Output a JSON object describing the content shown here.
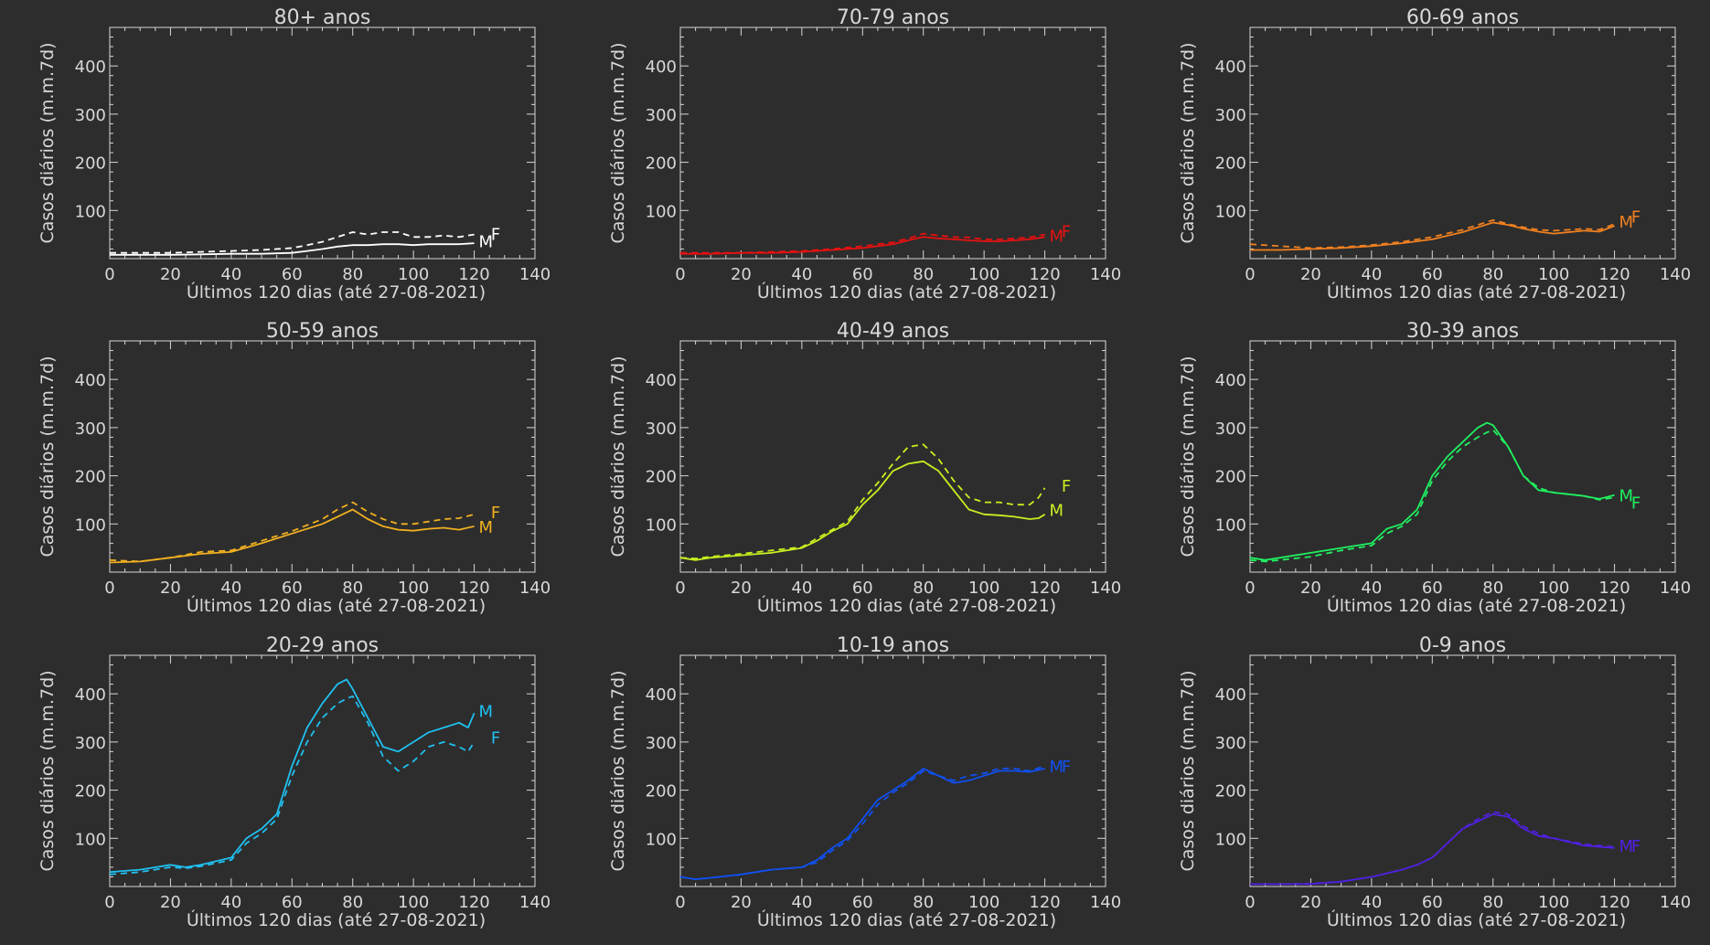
{
  "chart_data": [
    {
      "type": "line",
      "title": "80+ anos",
      "xlabel": "Últimos 120 dias (até 27-08-2021)",
      "ylabel": "Casos diários (m.m.7d)",
      "xlim": [
        0,
        140
      ],
      "ylim": [
        0,
        480
      ],
      "xticks": [
        0,
        20,
        40,
        60,
        80,
        100,
        120,
        140
      ],
      "yticks": [
        100,
        200,
        300,
        400
      ],
      "color": "#ffffff",
      "label_m": "M",
      "label_f": "F",
      "label_m_y": 37,
      "label_f_y": 52,
      "series": [
        {
          "name": "M",
          "style": "solid",
          "x": [
            0,
            10,
            20,
            30,
            40,
            50,
            60,
            65,
            70,
            75,
            80,
            85,
            90,
            95,
            100,
            105,
            110,
            115,
            120
          ],
          "y": [
            8,
            8,
            8,
            9,
            10,
            10,
            12,
            16,
            20,
            25,
            28,
            28,
            30,
            30,
            28,
            30,
            30,
            30,
            32
          ]
        },
        {
          "name": "F",
          "style": "dashed",
          "x": [
            0,
            10,
            20,
            30,
            40,
            50,
            60,
            65,
            70,
            75,
            80,
            85,
            90,
            95,
            100,
            105,
            110,
            115,
            120
          ],
          "y": [
            12,
            12,
            12,
            14,
            16,
            18,
            22,
            28,
            35,
            45,
            55,
            50,
            55,
            55,
            45,
            45,
            48,
            45,
            50
          ]
        }
      ]
    },
    {
      "type": "line",
      "title": "70-79 anos",
      "xlabel": "Últimos 120 dias (até 27-08-2021)",
      "ylabel": "Casos diários (m.m.7d)",
      "xlim": [
        0,
        140
      ],
      "ylim": [
        0,
        480
      ],
      "xticks": [
        0,
        20,
        40,
        60,
        80,
        100,
        120,
        140
      ],
      "yticks": [
        100,
        200,
        300,
        400
      ],
      "color": "#e81010",
      "label_m": "M",
      "label_f": "F",
      "label_m_y": 48,
      "label_f_y": 58,
      "series": [
        {
          "name": "M",
          "style": "solid",
          "x": [
            0,
            10,
            20,
            30,
            40,
            50,
            60,
            70,
            75,
            80,
            85,
            90,
            95,
            100,
            105,
            110,
            115,
            120
          ],
          "y": [
            10,
            10,
            12,
            12,
            14,
            18,
            22,
            30,
            38,
            45,
            42,
            40,
            38,
            36,
            36,
            38,
            40,
            45
          ]
        },
        {
          "name": "F",
          "style": "dashed",
          "x": [
            0,
            10,
            20,
            30,
            40,
            50,
            60,
            70,
            75,
            80,
            85,
            90,
            95,
            100,
            105,
            110,
            115,
            120
          ],
          "y": [
            12,
            12,
            12,
            14,
            16,
            20,
            26,
            34,
            42,
            52,
            48,
            45,
            44,
            40,
            40,
            42,
            44,
            50
          ]
        }
      ]
    },
    {
      "type": "line",
      "title": "60-69 anos",
      "xlabel": "Últimos 120 dias (até 27-08-2021)",
      "ylabel": "Casos diários (m.m.7d)",
      "xlim": [
        0,
        140
      ],
      "ylim": [
        0,
        480
      ],
      "xticks": [
        0,
        20,
        40,
        60,
        80,
        100,
        120,
        140
      ],
      "yticks": [
        100,
        200,
        300,
        400
      ],
      "color": "#f08020",
      "label_m": "M",
      "label_f": "F",
      "label_m_y": 78,
      "label_f_y": 88,
      "series": [
        {
          "name": "M",
          "style": "solid",
          "x": [
            0,
            10,
            20,
            30,
            40,
            50,
            60,
            70,
            75,
            80,
            85,
            90,
            95,
            100,
            105,
            110,
            115,
            120
          ],
          "y": [
            18,
            18,
            20,
            22,
            26,
            32,
            40,
            55,
            65,
            75,
            70,
            62,
            56,
            52,
            55,
            58,
            56,
            68
          ]
        },
        {
          "name": "F",
          "style": "dashed",
          "x": [
            0,
            10,
            20,
            30,
            40,
            50,
            60,
            70,
            75,
            80,
            85,
            90,
            95,
            100,
            105,
            110,
            115,
            120
          ],
          "y": [
            30,
            26,
            22,
            24,
            28,
            35,
            45,
            60,
            70,
            80,
            72,
            65,
            60,
            58,
            60,
            62,
            60,
            72
          ]
        }
      ]
    },
    {
      "type": "line",
      "title": "50-59 anos",
      "xlabel": "Últimos 120 dias (até 27-08-2021)",
      "ylabel": "Casos diários (m.m.7d)",
      "xlim": [
        0,
        140
      ],
      "ylim": [
        0,
        480
      ],
      "xticks": [
        0,
        20,
        40,
        60,
        80,
        100,
        120,
        140
      ],
      "yticks": [
        100,
        200,
        300,
        400
      ],
      "color": "#f0b020",
      "label_m": "M",
      "label_f": "F",
      "label_m_y": 95,
      "label_f_y": 125,
      "series": [
        {
          "name": "M",
          "style": "solid",
          "x": [
            0,
            10,
            20,
            30,
            40,
            50,
            60,
            70,
            75,
            80,
            85,
            90,
            95,
            100,
            105,
            110,
            115,
            120
          ],
          "y": [
            20,
            22,
            30,
            38,
            42,
            60,
            80,
            100,
            115,
            130,
            110,
            95,
            88,
            86,
            90,
            92,
            88,
            95
          ]
        },
        {
          "name": "F",
          "style": "dashed",
          "x": [
            0,
            10,
            20,
            30,
            40,
            50,
            60,
            70,
            75,
            80,
            85,
            90,
            95,
            100,
            105,
            110,
            115,
            120
          ],
          "y": [
            25,
            22,
            30,
            42,
            45,
            65,
            85,
            110,
            130,
            145,
            125,
            110,
            100,
            100,
            105,
            110,
            112,
            120
          ]
        }
      ]
    },
    {
      "type": "line",
      "title": "40-49 anos",
      "xlabel": "Últimos 120 dias (até 27-08-2021)",
      "ylabel": "Casos diários (m.m.7d)",
      "xlim": [
        0,
        140
      ],
      "ylim": [
        0,
        480
      ],
      "xticks": [
        0,
        20,
        40,
        60,
        80,
        100,
        120,
        140
      ],
      "yticks": [
        100,
        200,
        300,
        400
      ],
      "color": "#c8f020",
      "label_m": "M",
      "label_f": "F",
      "label_m_y": 130,
      "label_f_y": 180,
      "series": [
        {
          "name": "M",
          "style": "solid",
          "x": [
            0,
            5,
            10,
            20,
            30,
            40,
            45,
            50,
            55,
            60,
            65,
            70,
            75,
            80,
            85,
            90,
            95,
            100,
            105,
            110,
            115,
            118,
            120
          ],
          "y": [
            30,
            25,
            30,
            35,
            40,
            50,
            65,
            85,
            100,
            140,
            170,
            210,
            225,
            230,
            210,
            170,
            130,
            120,
            118,
            115,
            110,
            112,
            120
          ]
        },
        {
          "name": "F",
          "style": "dashed",
          "x": [
            0,
            5,
            10,
            20,
            30,
            40,
            45,
            50,
            55,
            60,
            65,
            70,
            75,
            80,
            85,
            90,
            95,
            100,
            105,
            110,
            115,
            118,
            120
          ],
          "y": [
            30,
            28,
            32,
            38,
            45,
            52,
            70,
            88,
            105,
            150,
            185,
            225,
            260,
            265,
            235,
            190,
            155,
            145,
            145,
            140,
            140,
            155,
            175
          ]
        }
      ]
    },
    {
      "type": "line",
      "title": "30-39 anos",
      "xlabel": "Últimos 120 dias (até 27-08-2021)",
      "ylabel": "Casos diários (m.m.7d)",
      "xlim": [
        0,
        140
      ],
      "ylim": [
        0,
        480
      ],
      "xticks": [
        0,
        20,
        40,
        60,
        80,
        100,
        120,
        140
      ],
      "yticks": [
        100,
        200,
        300,
        400
      ],
      "color": "#20f060",
      "label_m": "M",
      "label_f": "F",
      "label_m_y": 160,
      "label_f_y": 145,
      "series": [
        {
          "name": "M",
          "style": "solid",
          "x": [
            0,
            5,
            10,
            20,
            30,
            40,
            45,
            50,
            55,
            60,
            65,
            70,
            75,
            78,
            80,
            85,
            90,
            95,
            100,
            110,
            115,
            120
          ],
          "y": [
            30,
            25,
            30,
            40,
            50,
            60,
            90,
            100,
            130,
            200,
            240,
            270,
            300,
            310,
            305,
            260,
            200,
            170,
            165,
            158,
            152,
            160
          ]
        },
        {
          "name": "F",
          "style": "dashed",
          "x": [
            0,
            5,
            10,
            20,
            30,
            40,
            45,
            50,
            55,
            60,
            65,
            70,
            75,
            78,
            80,
            85,
            90,
            95,
            100,
            110,
            115,
            120
          ],
          "y": [
            25,
            22,
            25,
            32,
            45,
            55,
            80,
            95,
            120,
            190,
            230,
            260,
            280,
            290,
            295,
            260,
            200,
            175,
            165,
            158,
            150,
            155
          ]
        }
      ]
    },
    {
      "type": "line",
      "title": "20-29 anos",
      "xlabel": "Últimos 120 dias (até 27-08-2021)",
      "ylabel": "Casos diários (m.m.7d)",
      "xlim": [
        0,
        140
      ],
      "ylim": [
        0,
        480
      ],
      "xticks": [
        0,
        20,
        40,
        60,
        80,
        100,
        120,
        140
      ],
      "yticks": [
        100,
        200,
        300,
        400
      ],
      "color": "#20c0f0",
      "label_m": "M",
      "label_f": "F",
      "label_m_y": 365,
      "label_f_y": 310,
      "series": [
        {
          "name": "M",
          "style": "solid",
          "x": [
            0,
            10,
            20,
            25,
            30,
            40,
            45,
            50,
            55,
            60,
            65,
            70,
            75,
            78,
            80,
            85,
            90,
            95,
            100,
            105,
            110,
            115,
            118,
            120
          ],
          "y": [
            30,
            35,
            45,
            40,
            45,
            60,
            100,
            120,
            150,
            250,
            330,
            380,
            420,
            430,
            410,
            350,
            290,
            280,
            300,
            320,
            330,
            340,
            330,
            360
          ]
        },
        {
          "name": "F",
          "style": "dashed",
          "x": [
            0,
            10,
            20,
            25,
            30,
            40,
            45,
            50,
            55,
            60,
            65,
            70,
            75,
            78,
            80,
            85,
            90,
            95,
            100,
            105,
            110,
            115,
            118,
            120
          ],
          "y": [
            25,
            30,
            40,
            38,
            42,
            55,
            90,
            110,
            140,
            230,
            300,
            350,
            380,
            390,
            395,
            340,
            270,
            240,
            260,
            290,
            300,
            290,
            280,
            300
          ]
        }
      ]
    },
    {
      "type": "line",
      "title": "10-19 anos",
      "xlabel": "Últimos 120 dias (até 27-08-2021)",
      "ylabel": "Casos diários (m.m.7d)",
      "xlim": [
        0,
        140
      ],
      "ylim": [
        0,
        480
      ],
      "xticks": [
        0,
        20,
        40,
        60,
        80,
        100,
        120,
        140
      ],
      "yticks": [
        100,
        200,
        300,
        400
      ],
      "color": "#1050f0",
      "label_m": "M",
      "label_f": "F",
      "label_m_y": 250,
      "label_f_y": 250,
      "series": [
        {
          "name": "M",
          "style": "solid",
          "x": [
            0,
            5,
            10,
            20,
            30,
            40,
            45,
            50,
            55,
            60,
            65,
            70,
            75,
            80,
            85,
            90,
            95,
            100,
            105,
            110,
            115,
            120
          ],
          "y": [
            20,
            15,
            18,
            25,
            35,
            40,
            55,
            80,
            100,
            140,
            180,
            200,
            220,
            245,
            230,
            215,
            220,
            230,
            240,
            240,
            238,
            245
          ]
        },
        {
          "name": "F",
          "style": "dashed",
          "x": [
            0,
            5,
            10,
            20,
            30,
            40,
            45,
            50,
            55,
            60,
            65,
            70,
            75,
            80,
            85,
            90,
            95,
            100,
            105,
            110,
            115,
            120
          ],
          "y": [
            20,
            15,
            18,
            25,
            35,
            40,
            50,
            75,
            95,
            130,
            170,
            195,
            215,
            240,
            230,
            220,
            230,
            235,
            245,
            245,
            240,
            250
          ]
        }
      ]
    },
    {
      "type": "line",
      "title": "0-9 anos",
      "xlabel": "Últimos 120 dias (até 27-08-2021)",
      "ylabel": "Casos diários (m.m.7d)",
      "xlim": [
        0,
        140
      ],
      "ylim": [
        0,
        480
      ],
      "xticks": [
        0,
        20,
        40,
        60,
        80,
        100,
        120,
        140
      ],
      "yticks": [
        100,
        200,
        300,
        400
      ],
      "color": "#5020e0",
      "label_m": "M",
      "label_f": "F",
      "label_m_y": 85,
      "label_f_y": 85,
      "series": [
        {
          "name": "M",
          "style": "solid",
          "x": [
            0,
            10,
            20,
            30,
            40,
            50,
            55,
            60,
            65,
            70,
            75,
            80,
            85,
            90,
            95,
            100,
            110,
            120
          ],
          "y": [
            5,
            5,
            5,
            10,
            20,
            35,
            45,
            60,
            90,
            120,
            135,
            150,
            145,
            120,
            105,
            100,
            85,
            80
          ]
        },
        {
          "name": "F",
          "style": "dashed",
          "x": [
            0,
            10,
            20,
            30,
            40,
            50,
            55,
            60,
            65,
            70,
            75,
            80,
            85,
            90,
            95,
            100,
            110,
            120
          ],
          "y": [
            5,
            5,
            6,
            10,
            20,
            35,
            45,
            60,
            90,
            120,
            140,
            155,
            150,
            125,
            110,
            100,
            88,
            82
          ]
        }
      ]
    }
  ]
}
